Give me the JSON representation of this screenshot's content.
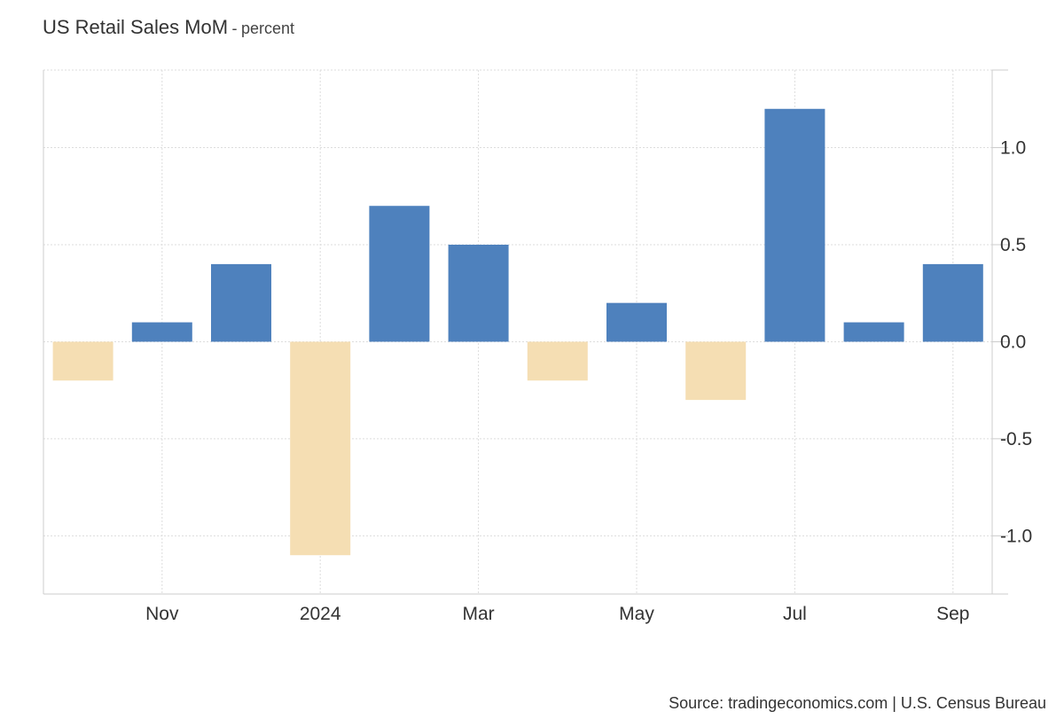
{
  "header": {
    "title": "US Retail Sales MoM",
    "separator": "-",
    "unit": "percent"
  },
  "footer": {
    "source": "Source: tradingeconomics.com | U.S. Census Bureau"
  },
  "colors": {
    "positive": "#4e81bd",
    "negative": "#f5deb3",
    "grid": "#dddddd",
    "axis": "#cccccc"
  },
  "chart_data": {
    "type": "bar",
    "title": "US Retail Sales MoM",
    "subtitle": "percent",
    "categories": [
      "2023-10",
      "2023-11",
      "2023-12",
      "2024-01",
      "2024-02",
      "2024-03",
      "2024-04",
      "2024-05",
      "2024-06",
      "2024-07",
      "2024-08",
      "2024-09"
    ],
    "values": [
      -0.2,
      0.1,
      0.4,
      -1.1,
      0.7,
      0.5,
      -0.2,
      0.2,
      -0.3,
      1.2,
      0.1,
      0.4
    ],
    "x_tick_labels": [
      {
        "category": "2023-11",
        "label": "Nov"
      },
      {
        "category": "2024-01",
        "label": "2024"
      },
      {
        "category": "2024-03",
        "label": "Mar"
      },
      {
        "category": "2024-05",
        "label": "May"
      },
      {
        "category": "2024-07",
        "label": "Jul"
      },
      {
        "category": "2024-09",
        "label": "Sep"
      }
    ],
    "y_ticks": [
      {
        "value": 1.0,
        "label": "1.0"
      },
      {
        "value": 0.5,
        "label": "0.5"
      },
      {
        "value": 0.0,
        "label": "0.0"
      },
      {
        "value": -0.5,
        "label": "-0.5"
      },
      {
        "value": -1.0,
        "label": "-1.0"
      }
    ],
    "ylim": [
      -1.3,
      1.4
    ],
    "y_axis_position": "right",
    "grid": true,
    "legend": "none"
  }
}
